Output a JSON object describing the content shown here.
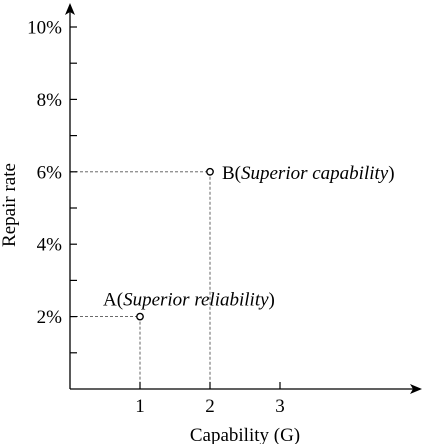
{
  "chart_data": {
    "type": "scatter",
    "title": "",
    "xlabel": "Capability (G)",
    "ylabel": "Repair rate",
    "xlim": [
      0,
      4.8
    ],
    "ylim": [
      0,
      10.5
    ],
    "x_ticks": [
      1,
      2,
      3
    ],
    "x_tick_labels": [
      "1",
      "2",
      "3"
    ],
    "y_major_ticks": [
      2,
      4,
      6,
      8,
      10
    ],
    "y_minor_ticks": [
      1,
      3,
      5,
      7,
      9
    ],
    "y_tick_labels": [
      "2%",
      "4%",
      "6%",
      "8%",
      "10%"
    ],
    "grid": false,
    "points": [
      {
        "label": "A",
        "note": "Superior reliability",
        "x": 1,
        "y": 2
      },
      {
        "label": "B",
        "note": "Superior capability",
        "x": 2,
        "y": 6
      }
    ]
  }
}
